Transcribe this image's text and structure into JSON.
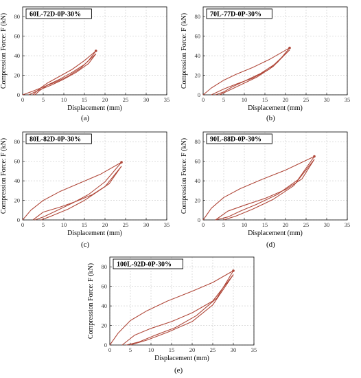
{
  "colors": {
    "curve": "#b0483a",
    "grid": "#c9c9c9",
    "tagFill": "#ffffff"
  },
  "chart_data": [
    {
      "type": "line",
      "label": "(a)",
      "tag": "60L-72D-0P-30%",
      "xlabel": "Displacement (mm)",
      "ylabel": "Compression Force: F (kN)",
      "xlim": [
        0,
        35
      ],
      "ylim": [
        0,
        90
      ],
      "xticks": [
        0,
        5,
        10,
        15,
        20,
        25,
        30,
        35
      ],
      "yticks": [
        0,
        20,
        40,
        60,
        80
      ],
      "grid": true,
      "peak": [
        17.8,
        45
      ],
      "series": [
        {
          "x": [
            0,
            2,
            5,
            8,
            11,
            14,
            16,
            17.8
          ],
          "y": [
            0,
            3,
            8,
            13,
            19,
            27,
            35,
            45
          ]
        },
        {
          "x": [
            17.8,
            15,
            12,
            9,
            6,
            4,
            2.5
          ],
          "y": [
            45,
            35,
            26,
            19,
            12,
            6,
            0
          ]
        },
        {
          "x": [
            1.5,
            4,
            7,
            10,
            13,
            16,
            17.8
          ],
          "y": [
            0,
            5,
            10,
            16,
            23,
            32,
            42
          ]
        },
        {
          "x": [
            17.8,
            15,
            12,
            9,
            6,
            4,
            3
          ],
          "y": [
            42,
            31,
            23,
            16,
            10,
            4,
            0
          ]
        }
      ]
    },
    {
      "type": "line",
      "label": "(b)",
      "tag": "70L-77D-0P-30%",
      "xlabel": "Displacement (mm)",
      "ylabel": "Compression Force: F (kN)",
      "xlim": [
        0,
        35
      ],
      "ylim": [
        0,
        90
      ],
      "xticks": [
        0,
        5,
        10,
        15,
        20,
        25,
        30,
        35
      ],
      "yticks": [
        0,
        20,
        40,
        60,
        80
      ],
      "grid": true,
      "peak": [
        21,
        48
      ],
      "series": [
        {
          "x": [
            0,
            2,
            5,
            8,
            12,
            16,
            21
          ],
          "y": [
            0,
            7,
            15,
            21,
            28,
            36,
            48
          ]
        },
        {
          "x": [
            21,
            18,
            14,
            10,
            7,
            5,
            3
          ],
          "y": [
            48,
            33,
            22,
            14,
            8,
            3,
            0
          ]
        },
        {
          "x": [
            2,
            5,
            8,
            12,
            16,
            21
          ],
          "y": [
            0,
            6,
            11,
            17,
            26,
            46
          ]
        },
        {
          "x": [
            21,
            17,
            13,
            9,
            6,
            4
          ],
          "y": [
            46,
            29,
            18,
            10,
            4,
            0
          ]
        }
      ]
    },
    {
      "type": "line",
      "label": "(c)",
      "tag": "80L-82D-0P-30%",
      "xlabel": "Displacement (mm)",
      "ylabel": "Compression Force: F (kN)",
      "xlim": [
        0,
        35
      ],
      "ylim": [
        0,
        90
      ],
      "xticks": [
        0,
        5,
        10,
        15,
        20,
        25,
        30,
        35
      ],
      "yticks": [
        0,
        20,
        40,
        60,
        80
      ],
      "grid": true,
      "peak": [
        24,
        59
      ],
      "series": [
        {
          "x": [
            0,
            2,
            5,
            9,
            14,
            19,
            24
          ],
          "y": [
            0,
            10,
            20,
            29,
            38,
            47,
            59
          ]
        },
        {
          "x": [
            24,
            20,
            16,
            12,
            8,
            5,
            3
          ],
          "y": [
            59,
            39,
            26,
            17,
            9,
            3,
            0
          ]
        },
        {
          "x": [
            2.5,
            5,
            9,
            13,
            17,
            21,
            24
          ],
          "y": [
            0,
            8,
            13,
            19,
            26,
            37,
            55
          ]
        },
        {
          "x": [
            24,
            20,
            15,
            11,
            7,
            4.5
          ],
          "y": [
            55,
            34,
            20,
            11,
            4,
            0
          ]
        }
      ]
    },
    {
      "type": "line",
      "label": "(d)",
      "tag": "90L-88D-0P-30%",
      "xlabel": "Displacement (mm)",
      "ylabel": "Compression Force: F (kN)",
      "xlim": [
        0,
        35
      ],
      "ylim": [
        0,
        90
      ],
      "xticks": [
        0,
        5,
        10,
        15,
        20,
        25,
        30,
        35
      ],
      "yticks": [
        0,
        20,
        40,
        60,
        80
      ],
      "grid": true,
      "peak": [
        27,
        65
      ],
      "series": [
        {
          "x": [
            0,
            2,
            5,
            9,
            14,
            20,
            27
          ],
          "y": [
            0,
            12,
            23,
            32,
            41,
            51,
            65
          ]
        },
        {
          "x": [
            27,
            23,
            18,
            13,
            9,
            6,
            3
          ],
          "y": [
            65,
            41,
            26,
            16,
            9,
            3,
            0
          ]
        },
        {
          "x": [
            3,
            6,
            10,
            15,
            20,
            24,
            27
          ],
          "y": [
            0,
            9,
            15,
            22,
            31,
            42,
            62
          ]
        },
        {
          "x": [
            27,
            22,
            17,
            12,
            8,
            5
          ],
          "y": [
            62,
            35,
            21,
            11,
            4,
            0
          ]
        }
      ]
    },
    {
      "type": "line",
      "label": "(e)",
      "tag": "100L-92D-0P-30%",
      "xlabel": "Displacement (mm)",
      "ylabel": "Compression Force: F (kN)",
      "xlim": [
        0,
        35
      ],
      "ylim": [
        0,
        90
      ],
      "xticks": [
        0,
        5,
        10,
        15,
        20,
        25,
        30,
        35
      ],
      "yticks": [
        0,
        20,
        40,
        60,
        80
      ],
      "grid": true,
      "peak": [
        30,
        76
      ],
      "series": [
        {
          "x": [
            0,
            2,
            5,
            9,
            14,
            20,
            25,
            30
          ],
          "y": [
            0,
            12,
            25,
            35,
            45,
            55,
            64,
            76
          ]
        },
        {
          "x": [
            30,
            26,
            21,
            16,
            11,
            7,
            4
          ],
          "y": [
            76,
            48,
            30,
            18,
            10,
            3,
            0
          ]
        },
        {
          "x": [
            3,
            6,
            10,
            15,
            20,
            25,
            30
          ],
          "y": [
            0,
            10,
            17,
            24,
            33,
            45,
            72
          ]
        },
        {
          "x": [
            30,
            25,
            20,
            14,
            9,
            5
          ],
          "y": [
            72,
            41,
            24,
            13,
            5,
            0
          ]
        }
      ]
    }
  ]
}
